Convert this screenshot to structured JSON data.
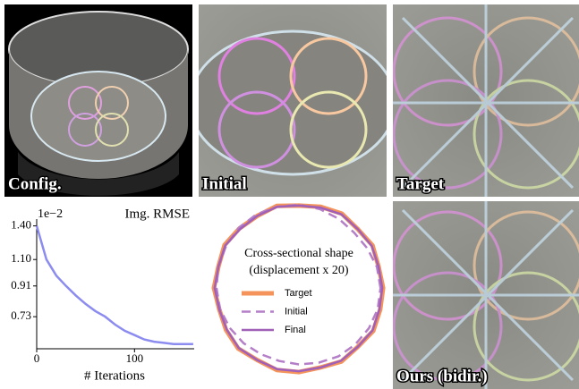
{
  "panels": [
    {
      "label": "Config."
    },
    {
      "label": "Initial"
    },
    {
      "label": "Target"
    },
    {
      "label": "Ours (bidir.)"
    }
  ],
  "chart_data": [
    {
      "type": "line",
      "title": "Img. RMSE",
      "multiplier": "1e−2",
      "xlabel": "# Iterations",
      "x": [
        0,
        10,
        20,
        30,
        40,
        50,
        60,
        70,
        80,
        90,
        100,
        110,
        120,
        130,
        140,
        150,
        160
      ],
      "values": [
        1.4,
        1.1,
        0.98,
        0.91,
        0.85,
        0.8,
        0.76,
        0.73,
        0.69,
        0.66,
        0.64,
        0.62,
        0.61,
        0.605,
        0.6,
        0.6,
        0.6
      ],
      "color": "#8c8cf0",
      "log": true,
      "xlim": [
        0,
        161
      ],
      "xticks": [
        0,
        100
      ],
      "ylim": [
        0.58,
        1.47
      ],
      "yticks": [
        {
          "value": 1.4,
          "label": "1.40"
        },
        {
          "value": 1.1,
          "label": "1.10"
        },
        0.91,
        0.73
      ]
    },
    {
      "type": "polar",
      "title_lines": [
        "Cross-sectional shape",
        "(displacement x 20)"
      ],
      "x": [
        0,
        15,
        30,
        45,
        60,
        75,
        90,
        105,
        120,
        135,
        150,
        165,
        180,
        195,
        210,
        225,
        240,
        255,
        270,
        285,
        300,
        315,
        330,
        345
      ],
      "rlim": [
        0,
        100
      ],
      "series": [
        {
          "name": "Target",
          "color": "#f4935a",
          "style": "solid",
          "values": [
            99,
            97,
            100,
            98,
            101,
            99,
            97,
            100,
            98,
            99,
            101,
            98,
            100,
            97,
            99,
            101,
            98,
            100,
            99,
            97,
            100,
            98,
            101,
            99
          ]
        },
        {
          "name": "Initial",
          "color": "#b57fc8",
          "style": "dashed",
          "values": [
            96,
            95,
            93,
            92,
            94,
            96,
            98,
            99,
            100,
            100,
            99,
            98,
            97,
            96,
            94,
            92,
            90,
            89,
            90,
            91,
            93,
            94,
            95,
            96
          ]
        },
        {
          "name": "Final",
          "color": "#a060b8",
          "style": "solid",
          "values": [
            98,
            97,
            99,
            98,
            100,
            98,
            97,
            99,
            98,
            98,
            100,
            98,
            99,
            97,
            98,
            100,
            98,
            99,
            98,
            97,
            99,
            98,
            100,
            98
          ]
        }
      ]
    }
  ]
}
